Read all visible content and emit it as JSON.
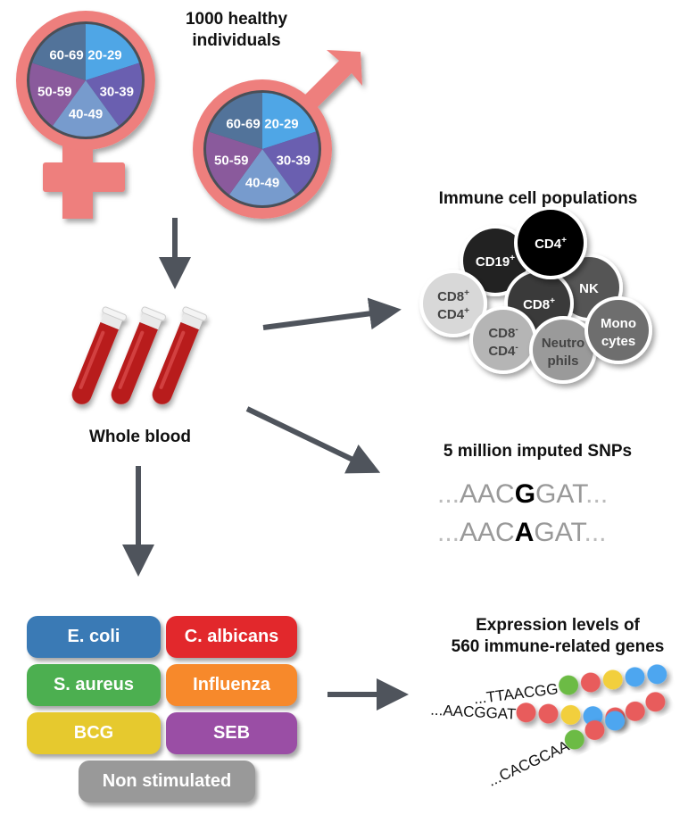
{
  "population": {
    "title_line1": "1000 healthy",
    "title_line2": "individuals",
    "age_groups": [
      "20-29",
      "30-39",
      "40-49",
      "50-59",
      "60-69"
    ],
    "age_colors": [
      "#4fa6e6",
      "#6a5fb0",
      "#779bcd",
      "#8a5a9c",
      "#52739a"
    ],
    "symbol_color": "#ee7f7d"
  },
  "blood": {
    "label": "Whole blood",
    "tube_color": "#b81b1b"
  },
  "immune_cells": {
    "title": "Immune cell populations",
    "cells": [
      {
        "label": "CD19",
        "sup": "+",
        "color": "#222222"
      },
      {
        "label": "NK",
        "sup": "",
        "color": "#555555"
      },
      {
        "label": "CD8",
        "sup": "+",
        "color": "#3a3a3a"
      },
      {
        "label": "CD4",
        "sup": "+",
        "color": "#000000"
      },
      {
        "label": "CD8+ / CD4+",
        "line1": "CD8",
        "sup1": "+",
        "line2": "CD4",
        "sup2": "+",
        "color": "#d8d8d8"
      },
      {
        "label": "CD8- / CD4-",
        "line1": "CD8",
        "sup1": "-",
        "line2": "CD4",
        "sup2": "-",
        "color": "#b5b5b5"
      },
      {
        "label": "Neutrophils",
        "line1": "Neutro",
        "line2": "phils",
        "color": "#9a9a9a"
      },
      {
        "label": "Monocytes",
        "line1": "Mono",
        "line2": "cytes",
        "color": "#6e6e6e"
      }
    ]
  },
  "snps": {
    "title": "5 million imputed SNPs",
    "seq1": {
      "prefix": "...",
      "left": "AAC",
      "variant": "G",
      "right": "GAT",
      "suffix": "..."
    },
    "seq2": {
      "prefix": "...",
      "left": "AAC",
      "variant": "A",
      "right": "GAT",
      "suffix": "..."
    }
  },
  "stimuli": [
    {
      "label": "E. coli",
      "color": "#3a7ab5"
    },
    {
      "label": "C. albicans",
      "color": "#e2282c"
    },
    {
      "label": "S. aureus",
      "color": "#4caf50"
    },
    {
      "label": "Influenza",
      "color": "#f7892b"
    },
    {
      "label": "BCG",
      "color": "#e6c92e"
    },
    {
      "label": "SEB",
      "color": "#9a4ea5"
    },
    {
      "label": "Non stimulated",
      "color": "#999999"
    }
  ],
  "expression": {
    "title_line1": "Expression levels of",
    "title_line2": "560 immune-related genes",
    "strands": [
      {
        "seq": "...TTAACGG",
        "beads": [
          "#6cbb45",
          "#e85c5c",
          "#f2cf3c",
          "#4ea6f0",
          "#4ea6f0"
        ]
      },
      {
        "seq": "...AACGGAT",
        "beads": [
          "#e85c5c",
          "#e85c5c",
          "#f2cf3c",
          "#4ea6f0",
          "#e85c5c"
        ]
      },
      {
        "seq": "...CACGCAA",
        "beads": [
          "#6cbb45",
          "#e85c5c",
          "#4ea6f0",
          "#e85c5c",
          "#e85c5c"
        ]
      }
    ]
  }
}
